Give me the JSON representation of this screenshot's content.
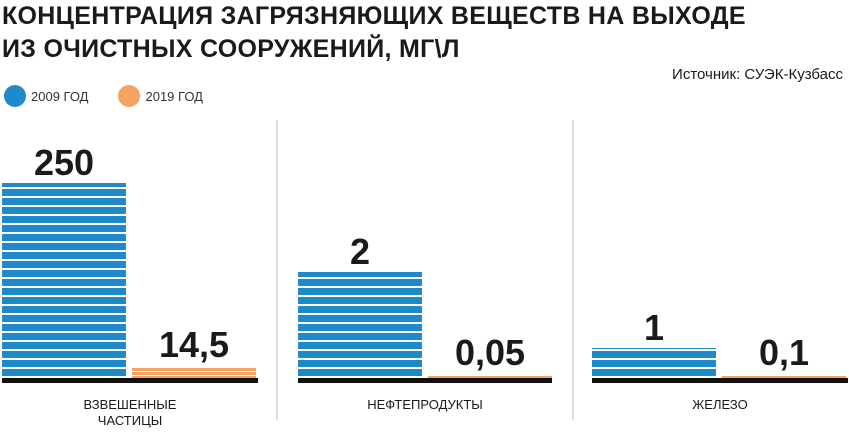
{
  "chart_data": {
    "type": "bar",
    "title_line1": "КОНЦЕНТРАЦИЯ ЗАГРЯЗНЯЮЩИХ ВЕЩЕСТВ НА ВЫХОДЕ",
    "title_line2": "ИЗ ОЧИСТНЫХ СООРУЖЕНИЙ, МГ\\Л",
    "source": "Источник: СУЭК-Кузбасс",
    "categories": [
      "ВЗВЕШЕННЫЕ ЧАСТИЦЫ",
      "НЕФТЕПРОДУКТЫ",
      "ЖЕЛЕЗО"
    ],
    "series": [
      {
        "name": "2009 ГОД",
        "color": "#1f8ac9",
        "values": [
          250,
          2,
          1
        ],
        "labels": [
          "250",
          "2",
          "1"
        ]
      },
      {
        "name": "2019 ГОД",
        "color": "#f4a460",
        "values": [
          14.5,
          0.05,
          0.1
        ],
        "labels": [
          "14,5",
          "0,05",
          "0,1"
        ]
      }
    ],
    "legend_position": "top-left",
    "scale": "independent per category"
  }
}
